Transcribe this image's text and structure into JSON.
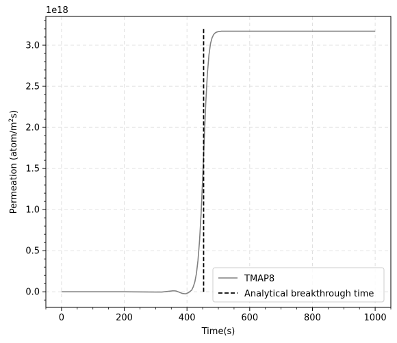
{
  "chart_data": {
    "type": "line",
    "xlabel": "Time(s)",
    "ylabel": "Permeation (atom/m²s)",
    "ylabel_parts": {
      "before": "Permeation (atom/m",
      "sup": "2",
      "after": "s)"
    },
    "y_offset_text": "1e18",
    "xlim": [
      -50,
      1050
    ],
    "ylim": [
      -0.19,
      3.35
    ],
    "y_scale": 1e+18,
    "grid": true,
    "legend_position": "lower-right",
    "x_ticks": [
      0,
      200,
      400,
      600,
      800,
      1000
    ],
    "x_tick_labels": [
      "0",
      "200",
      "400",
      "600",
      "800",
      "1000"
    ],
    "y_ticks": [
      0.0,
      0.5,
      1.0,
      1.5,
      2.0,
      2.5,
      3.0
    ],
    "y_tick_labels": [
      "0.0",
      "0.5",
      "1.0",
      "1.5",
      "2.0",
      "2.5",
      "3.0"
    ],
    "series": [
      {
        "name": "TMAP8",
        "color": "#808080",
        "style": "solid",
        "x": [
          0,
          100,
          200,
          300,
          320,
          340,
          355,
          365,
          375,
          385,
          395,
          405,
          415,
          420,
          425,
          430,
          435,
          440,
          445,
          450,
          455,
          460,
          465,
          470,
          475,
          480,
          485,
          490,
          495,
          500,
          510,
          520,
          540,
          600,
          700,
          800,
          900,
          1000
        ],
        "y": [
          0.0,
          0.0,
          0.0,
          -0.003,
          -0.003,
          0.005,
          0.012,
          0.01,
          -0.005,
          -0.02,
          -0.025,
          -0.01,
          0.02,
          0.06,
          0.12,
          0.22,
          0.38,
          0.62,
          0.95,
          1.38,
          1.85,
          2.3,
          2.65,
          2.88,
          3.02,
          3.09,
          3.13,
          3.15,
          3.16,
          3.165,
          3.17,
          3.17,
          3.17,
          3.17,
          3.17,
          3.17,
          3.17,
          3.17
        ]
      },
      {
        "name": "Analytical breakthrough time",
        "color": "#000000",
        "style": "dashed",
        "x": [
          453,
          453
        ],
        "y": [
          0.0,
          3.21
        ]
      }
    ]
  }
}
